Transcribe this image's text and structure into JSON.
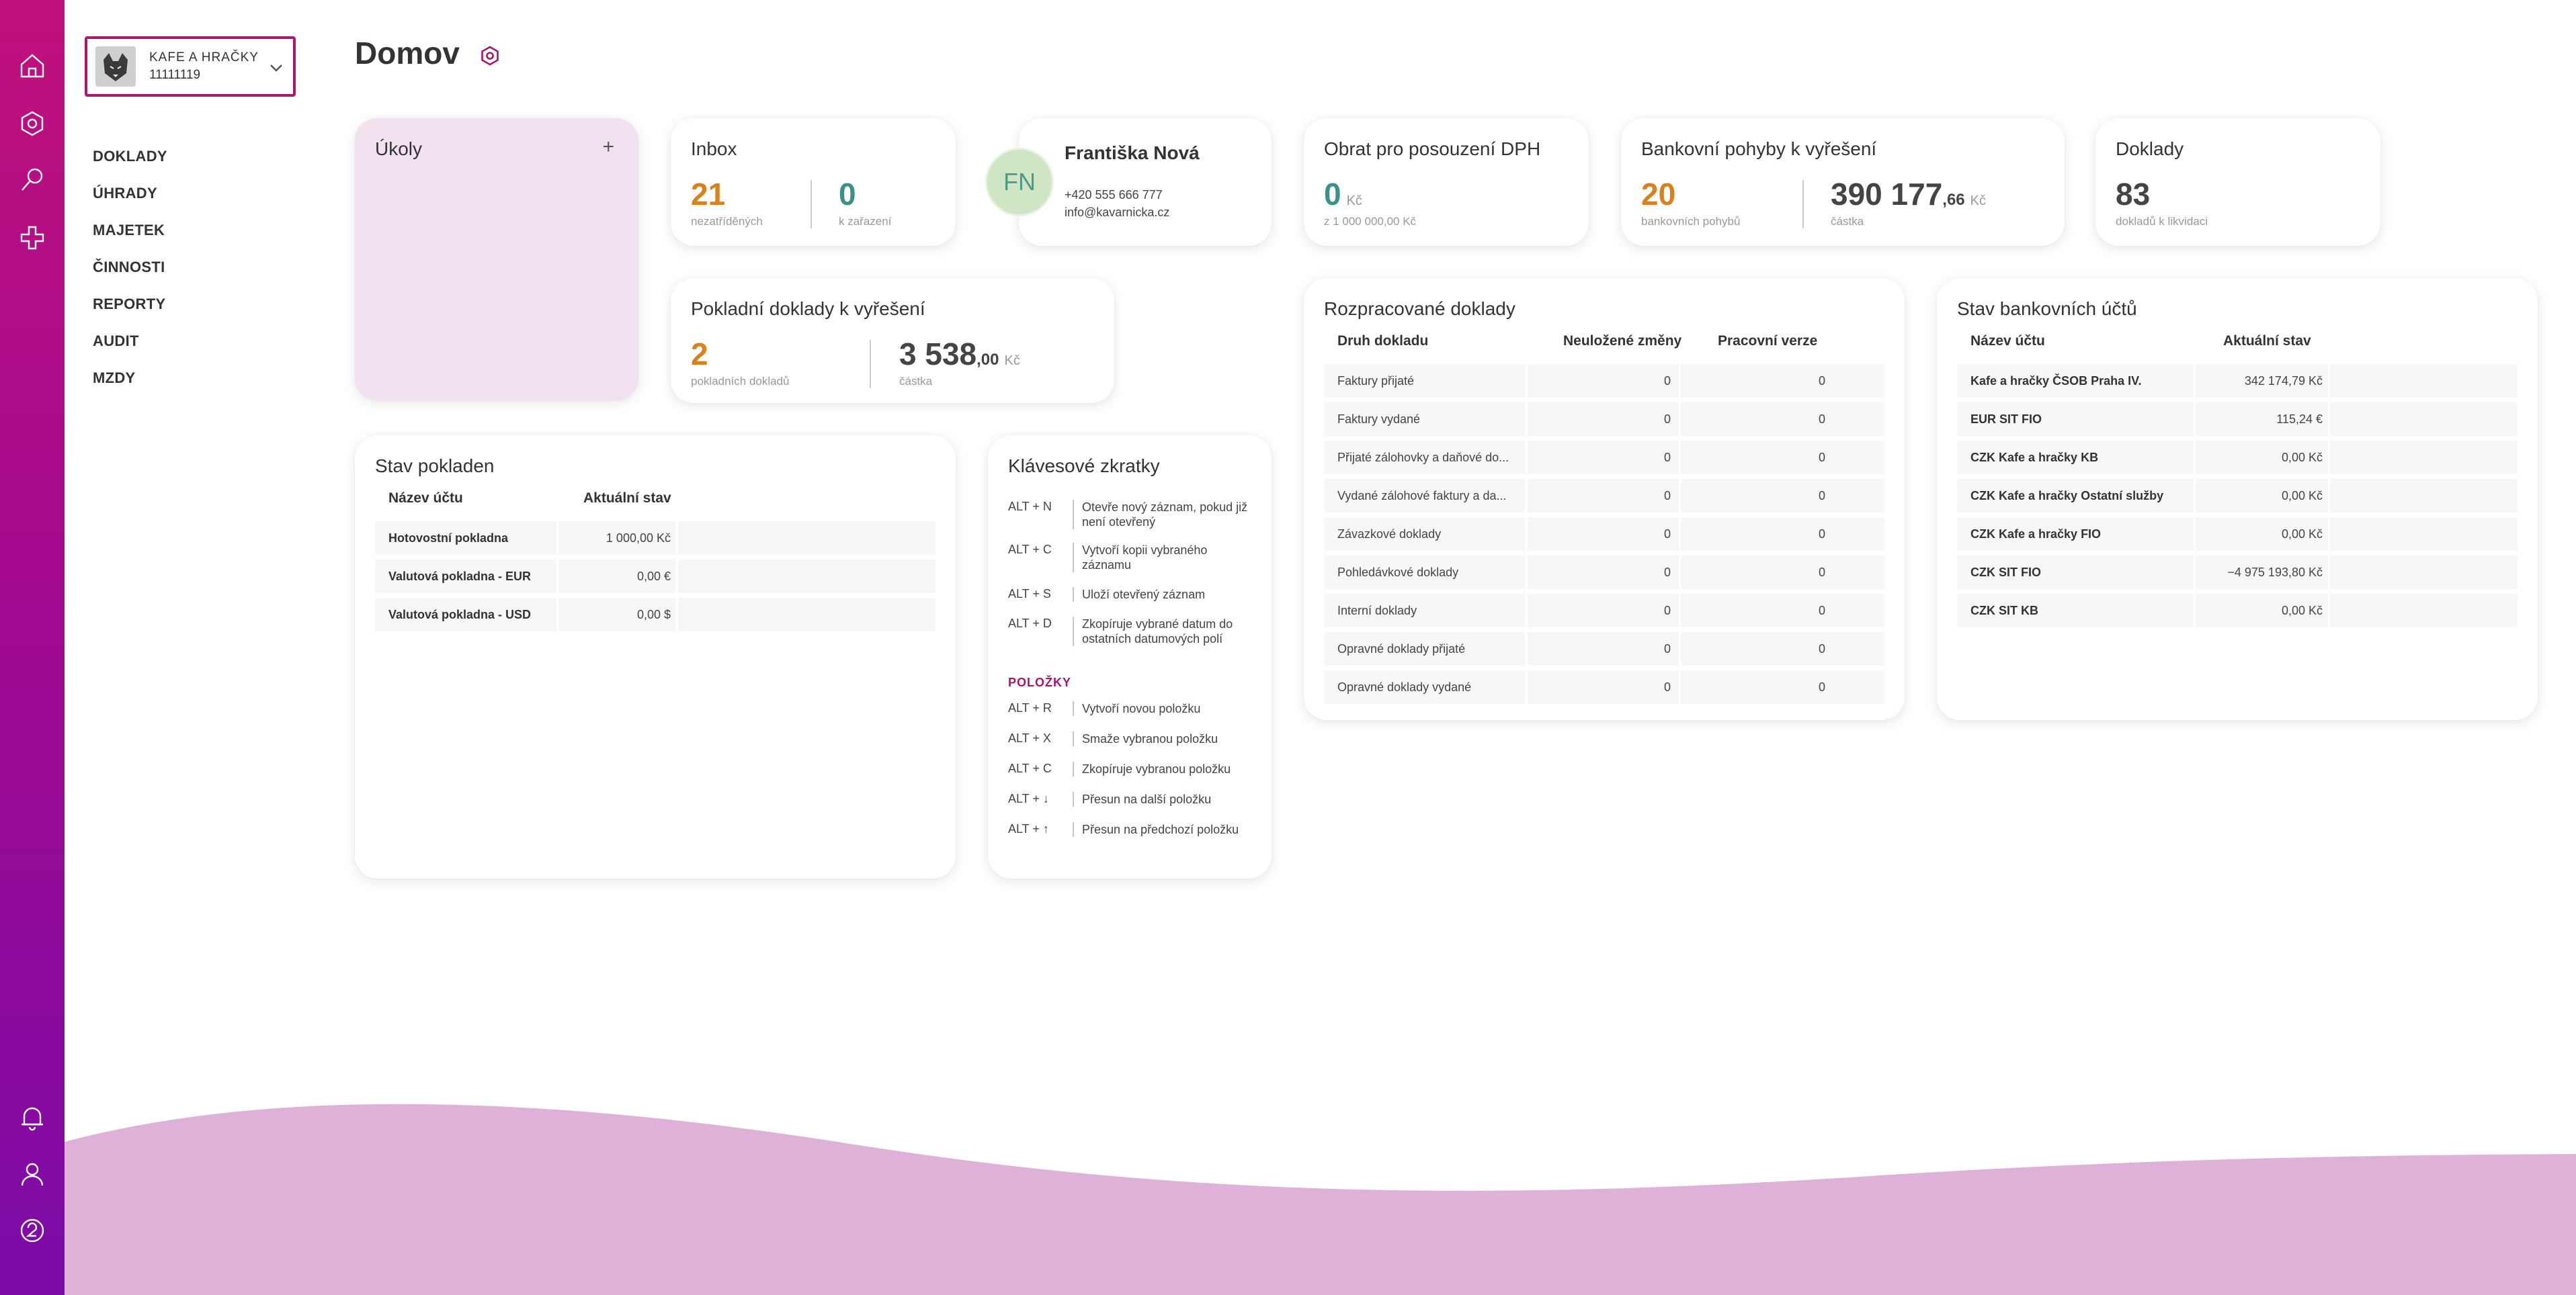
{
  "colors": {
    "rail_top": "#c0117c",
    "rail_bottom": "#7c0ba8",
    "accent": "#b0156f",
    "orange": "#d9811c",
    "teal": "#3c9187",
    "wave": "#e0b1d8"
  },
  "rail": {
    "top_icons": [
      "home-icon",
      "settings-icon",
      "search-icon",
      "plus-icon"
    ],
    "bottom_icons": [
      "bell-icon",
      "user-icon",
      "help-icon"
    ]
  },
  "company": {
    "name": "KAFE A HRAČKY",
    "code": "11111119"
  },
  "sidenav": [
    "DOKLADY",
    "ÚHRADY",
    "MAJETEK",
    "ČINNOSTI",
    "REPORTY",
    "AUDIT",
    "MZDY"
  ],
  "page": {
    "title": "Domov"
  },
  "tasks": {
    "title": "Úkoly",
    "add": "+"
  },
  "inbox": {
    "title": "Inbox",
    "unsorted_value": "21",
    "unsorted_label": "nezatříděných",
    "queued_value": "0",
    "queued_label": "k zařazení"
  },
  "contact": {
    "initials": "FN",
    "name": "Františka Nová",
    "phone": "+420 555 666 777",
    "email": "info@kavarnicka.cz"
  },
  "vat": {
    "title": "Obrat pro posouzení DPH",
    "value": "0",
    "unit": "Kč",
    "limit": "z 1 000 000,00 Kč"
  },
  "bank_moves": {
    "title": "Bankovní pohyby k vyřešení",
    "count": "20",
    "count_label": "bankovních pohybů",
    "amount_int": "390 177",
    "amount_dec": ",66",
    "unit": "Kč",
    "amount_label": "částka"
  },
  "docs": {
    "title": "Doklady",
    "value": "83",
    "label": "dokladů k likvidaci"
  },
  "cash_docs": {
    "title": "Pokladní doklady k vyřešení",
    "count": "2",
    "count_label": "pokladních dokladů",
    "amount_int": "3 538",
    "amount_dec": ",00",
    "unit": "Kč",
    "amount_label": "částka"
  },
  "cash_state": {
    "title": "Stav pokladen",
    "col_name": "Název účtu",
    "col_state": "Aktuální stav",
    "rows": [
      {
        "name": "Hotovostní pokladna",
        "value": "1 000,00 Kč"
      },
      {
        "name": "Valutová pokladna - EUR",
        "value": "0,00 €"
      },
      {
        "name": "Valutová pokladna - USD",
        "value": "0,00 $"
      }
    ]
  },
  "shortcuts": {
    "title": "Klávesové zkratky",
    "general": [
      {
        "key": "ALT + N",
        "desc": "Otevře nový záznam, pokud již není otevřený"
      },
      {
        "key": "ALT + C",
        "desc": "Vytvoří kopii vybraného záznamu"
      },
      {
        "key": "ALT + S",
        "desc": "Uloží otevřený záznam"
      },
      {
        "key": "ALT + D",
        "desc": "Zkopíruje vybrané datum do ostatních datumových polí"
      }
    ],
    "section": "POLOŽKY",
    "items": [
      {
        "key": "ALT + R",
        "desc": "Vytvoří novou položku"
      },
      {
        "key": "ALT + X",
        "desc": "Smaže vybranou položku"
      },
      {
        "key": "ALT + C",
        "desc": "Zkopíruje vybranou položku"
      },
      {
        "key": "ALT + ↓",
        "desc": "Přesun na další položku"
      },
      {
        "key": "ALT + ↑",
        "desc": "Přesun na předchozí položku"
      }
    ]
  },
  "drafts": {
    "title": "Rozpracované doklady",
    "col_type": "Druh dokladu",
    "col_unsaved": "Neuložené změny",
    "col_work": "Pracovní verze",
    "rows": [
      {
        "name": "Faktury přijaté",
        "unsaved": "0",
        "work": "0"
      },
      {
        "name": "Faktury vydané",
        "unsaved": "0",
        "work": "0"
      },
      {
        "name": "Přijaté zálohovky a daňové do...",
        "unsaved": "0",
        "work": "0"
      },
      {
        "name": "Vydané zálohové faktury a da...",
        "unsaved": "0",
        "work": "0"
      },
      {
        "name": "Závazkové doklady",
        "unsaved": "0",
        "work": "0"
      },
      {
        "name": "Pohledávkové doklady",
        "unsaved": "0",
        "work": "0"
      },
      {
        "name": "Interní doklady",
        "unsaved": "0",
        "work": "0"
      },
      {
        "name": "Opravné doklady přijaté",
        "unsaved": "0",
        "work": "0"
      },
      {
        "name": "Opravné doklady vydané",
        "unsaved": "0",
        "work": "0"
      }
    ]
  },
  "bank_state": {
    "title": "Stav bankovních účtů",
    "col_name": "Název účtu",
    "col_state": "Aktuální stav",
    "rows": [
      {
        "name": "Kafe a hračky ČSOB Praha IV.",
        "value": "342 174,79 Kč"
      },
      {
        "name": "EUR SIT FIO",
        "value": "115,24 €"
      },
      {
        "name": "CZK Kafe a hračky KB",
        "value": "0,00 Kč"
      },
      {
        "name": "CZK Kafe a hračky Ostatní služby",
        "value": "0,00 Kč"
      },
      {
        "name": "CZK Kafe a hračky FIO",
        "value": "0,00 Kč"
      },
      {
        "name": "CZK SIT FIO",
        "value": "−4 975 193,80 Kč"
      },
      {
        "name": "CZK SIT KB",
        "value": "0,00 Kč"
      }
    ]
  }
}
